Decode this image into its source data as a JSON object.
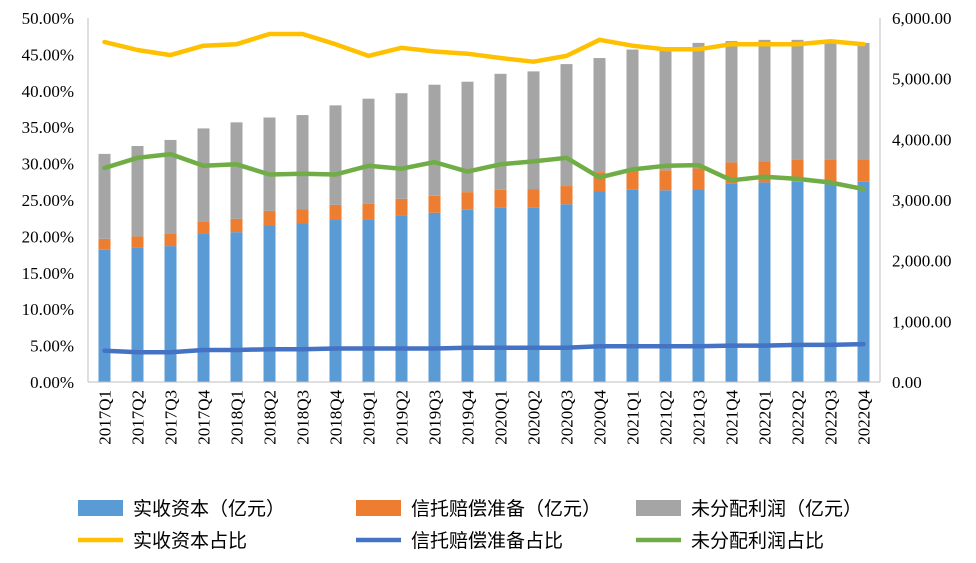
{
  "chart_data": {
    "type": "bar",
    "categories": [
      "2017Q1",
      "2017Q2",
      "2017Q3",
      "2017Q4",
      "2018Q1",
      "2018Q2",
      "2018Q3",
      "2018Q4",
      "2019Q1",
      "2019Q2",
      "2019Q3",
      "2019Q4",
      "2020Q1",
      "2020Q2",
      "2020Q3",
      "2020Q4",
      "2021Q1",
      "2021Q2",
      "2021Q3",
      "2021Q4",
      "2022Q1",
      "2022Q2",
      "2022Q3",
      "2022Q4"
    ],
    "stacked": true,
    "left_axis": {
      "ylim": [
        0,
        50
      ],
      "ticks": [
        "0.00%",
        "5.00%",
        "10.00%",
        "15.00%",
        "20.00%",
        "25.00%",
        "30.00%",
        "35.00%",
        "40.00%",
        "45.00%",
        "50.00%"
      ]
    },
    "right_axis": {
      "ylim": [
        0,
        6000
      ],
      "ticks": [
        "0.00",
        "1,000.00",
        "2,000.00",
        "3,000.00",
        "4,000.00",
        "5,000.00",
        "6,000.00"
      ]
    },
    "bar_series": [
      {
        "name": "实收资本（亿元）",
        "color": "#5b9bd5",
        "axis": "right",
        "values": [
          2180,
          2210,
          2240,
          2440,
          2470,
          2580,
          2620,
          2670,
          2680,
          2750,
          2790,
          2840,
          2870,
          2870,
          2930,
          3140,
          3170,
          3160,
          3180,
          3270,
          3290,
          3300,
          3300,
          3300
        ]
      },
      {
        "name": "信托赔偿准备（亿元）",
        "color": "#ed7d31",
        "axis": "right",
        "values": [
          180,
          190,
          200,
          210,
          220,
          240,
          230,
          250,
          260,
          270,
          280,
          290,
          300,
          310,
          300,
          320,
          310,
          330,
          340,
          350,
          350,
          360,
          360,
          370
        ]
      },
      {
        "name": "未分配利润（亿元）",
        "color": "#a5a5a5",
        "axis": "right",
        "values": [
          1400,
          1490,
          1550,
          1530,
          1590,
          1540,
          1550,
          1640,
          1730,
          1740,
          1830,
          1820,
          1910,
          1940,
          2010,
          1880,
          2000,
          2010,
          2070,
          2000,
          2000,
          1980,
          1940,
          1920
        ]
      }
    ],
    "line_series": [
      {
        "name": "实收资本占比",
        "color": "#ffc000",
        "axis": "left",
        "values": [
          46.7,
          45.6,
          44.9,
          46.2,
          46.4,
          47.8,
          47.8,
          46.4,
          44.8,
          45.9,
          45.4,
          45.1,
          44.5,
          44.0,
          44.8,
          47.0,
          46.2,
          45.7,
          45.7,
          46.4,
          46.4,
          46.4,
          46.8,
          46.4
        ]
      },
      {
        "name": "信托赔偿准备占比",
        "color": "#4472c4",
        "axis": "left",
        "values": [
          4.3,
          4.1,
          4.1,
          4.4,
          4.4,
          4.5,
          4.5,
          4.6,
          4.6,
          4.6,
          4.6,
          4.7,
          4.7,
          4.7,
          4.7,
          4.9,
          4.9,
          4.9,
          4.9,
          5.0,
          5.0,
          5.1,
          5.1,
          5.2
        ]
      },
      {
        "name": "未分配利润占比",
        "color": "#70ad47",
        "axis": "left",
        "values": [
          29.4,
          30.8,
          31.3,
          29.7,
          29.9,
          28.5,
          28.6,
          28.5,
          29.7,
          29.3,
          30.2,
          28.9,
          29.9,
          30.3,
          30.8,
          28.1,
          29.2,
          29.7,
          29.8,
          27.7,
          28.2,
          27.9,
          27.4,
          26.5
        ]
      }
    ],
    "gridlines": false,
    "legend_position": "bottom"
  }
}
